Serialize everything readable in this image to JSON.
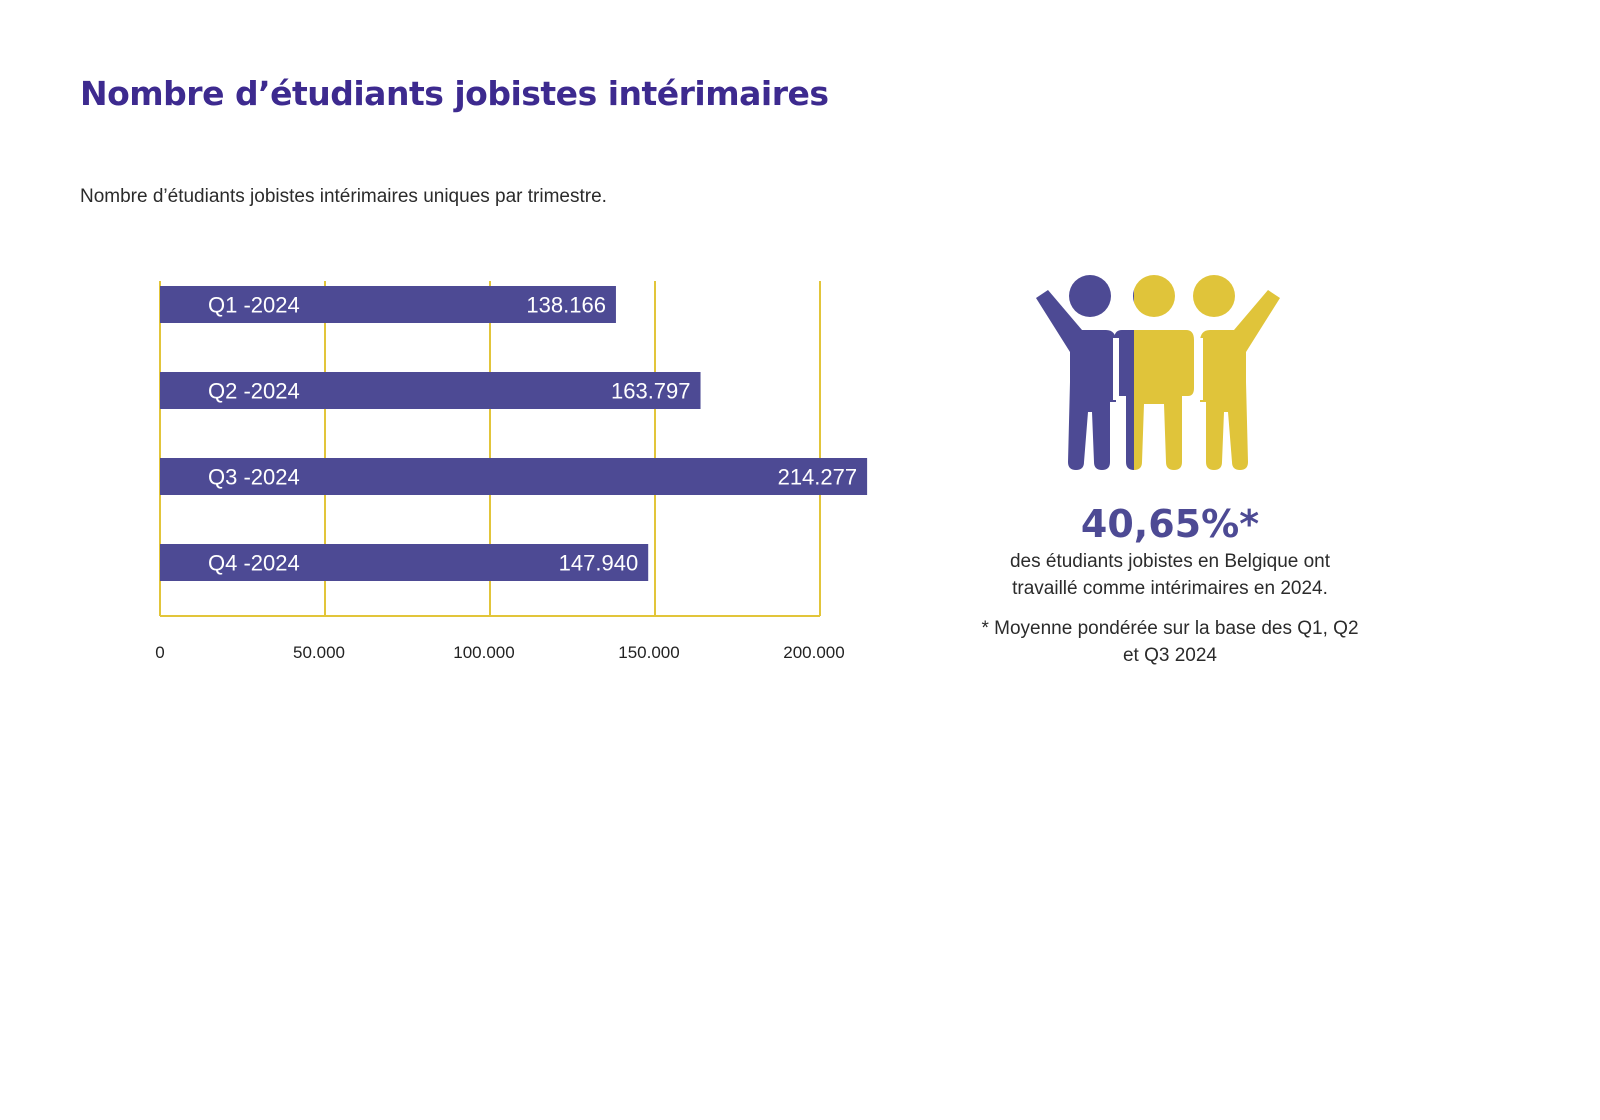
{
  "page": {
    "title": "Nombre d’étudiants jobistes intérimaires",
    "subtitle": "Nombre d’étudiants jobistes intérimaires uniques par trimestre."
  },
  "chart_data": {
    "type": "bar",
    "orientation": "horizontal",
    "categories": [
      "Q1 -2024",
      "Q2 -2024",
      "Q3 -2024",
      "Q4 -2024"
    ],
    "values": [
      138166,
      163797,
      214277,
      147940
    ],
    "value_labels": [
      "138.166",
      "163.797",
      "214.277",
      "147.940"
    ],
    "title": "",
    "xlabel": "",
    "ylabel": "",
    "xlim": [
      0,
      200000
    ],
    "x_ticks": [
      0,
      50000,
      100000,
      150000,
      200000
    ],
    "x_tick_labels": [
      "0",
      "50.000",
      "100.000",
      "150.000",
      "200.000"
    ],
    "grid": true,
    "legend": "none",
    "colors": {
      "bar": "#4d4a94",
      "grid": "#e2c53a",
      "label": "#ffffff"
    }
  },
  "stat": {
    "value": "40,65%*",
    "line1": "des étudiants jobistes en Belgique ont",
    "line2": "travaillé comme intérimaires en 2024.",
    "footnote_line1": "* Moyenne pondérée sur la base des Q1, Q2",
    "footnote_line2": "et Q3 2024"
  },
  "icons": {
    "people": "people-cheering-icon"
  },
  "colors": {
    "title": "#3d2a8f",
    "purple": "#4d4a94",
    "yellow": "#e0c43a",
    "text": "#2b2b2b"
  }
}
